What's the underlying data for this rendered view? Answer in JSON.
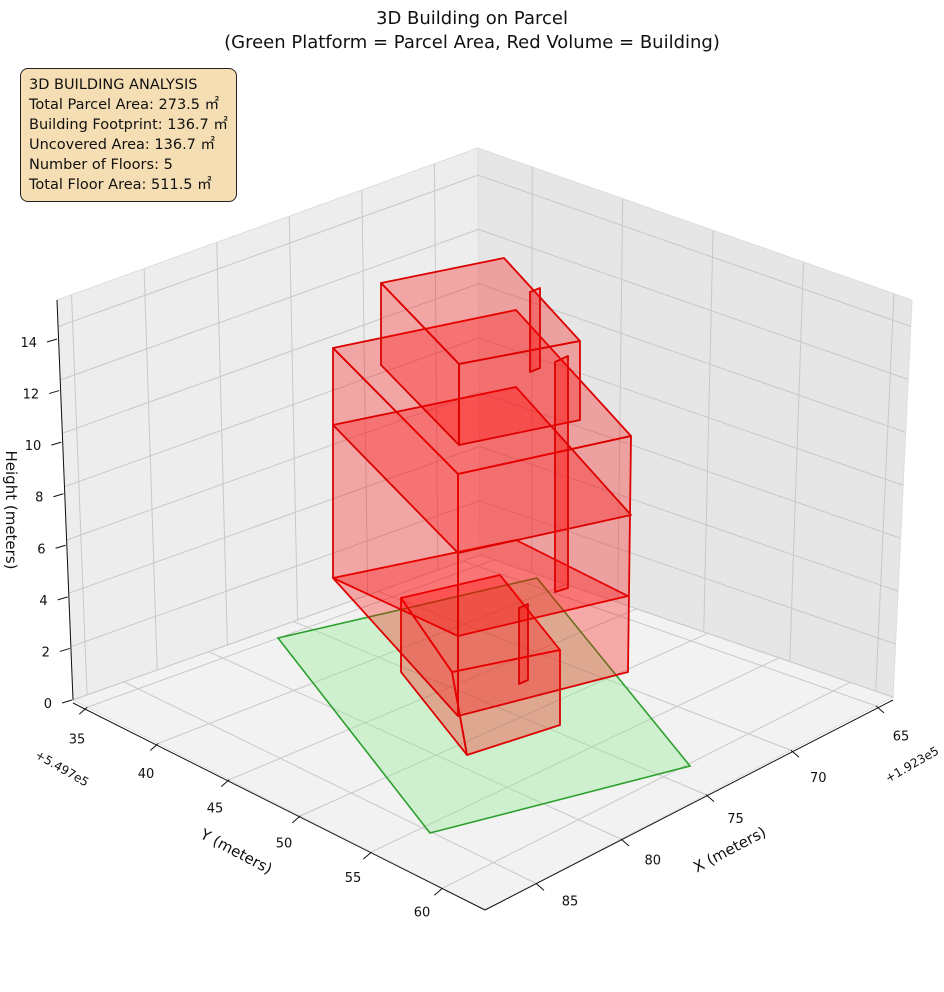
{
  "chart_data": {
    "type": "3d-polygons",
    "title": "3D Building on Parcel",
    "subtitle": "(Green Platform = Parcel Area, Red Volume = Building)",
    "xlabel": "X (meters)",
    "ylabel": "Y (meters)",
    "zlabel": "Height (meters)",
    "x_offset": "+1.923e5",
    "y_offset": "+5.497e5",
    "x_ticks": [
      "65",
      "70",
      "75",
      "80",
      "85"
    ],
    "y_ticks": [
      "35",
      "40",
      "45",
      "50",
      "55",
      "60"
    ],
    "z_ticks": [
      "0",
      "2",
      "4",
      "6",
      "8",
      "10",
      "12",
      "14"
    ],
    "series": [
      {
        "name": "Parcel Area",
        "color": "#2ca02c",
        "fill": "#90ee90"
      },
      {
        "name": "Building",
        "color": "#dd0000",
        "fill": "#ff0000"
      }
    ],
    "grid": true
  },
  "info": {
    "heading": "3D BUILDING ANALYSIS",
    "lines": [
      "Total Parcel Area: 273.5 ㎡",
      "Building Footprint: 136.7 ㎡",
      "Uncovered Area: 136.7 ㎡",
      "Number of Floors: 5",
      "Total Floor Area: 511.5 ㎡"
    ]
  }
}
